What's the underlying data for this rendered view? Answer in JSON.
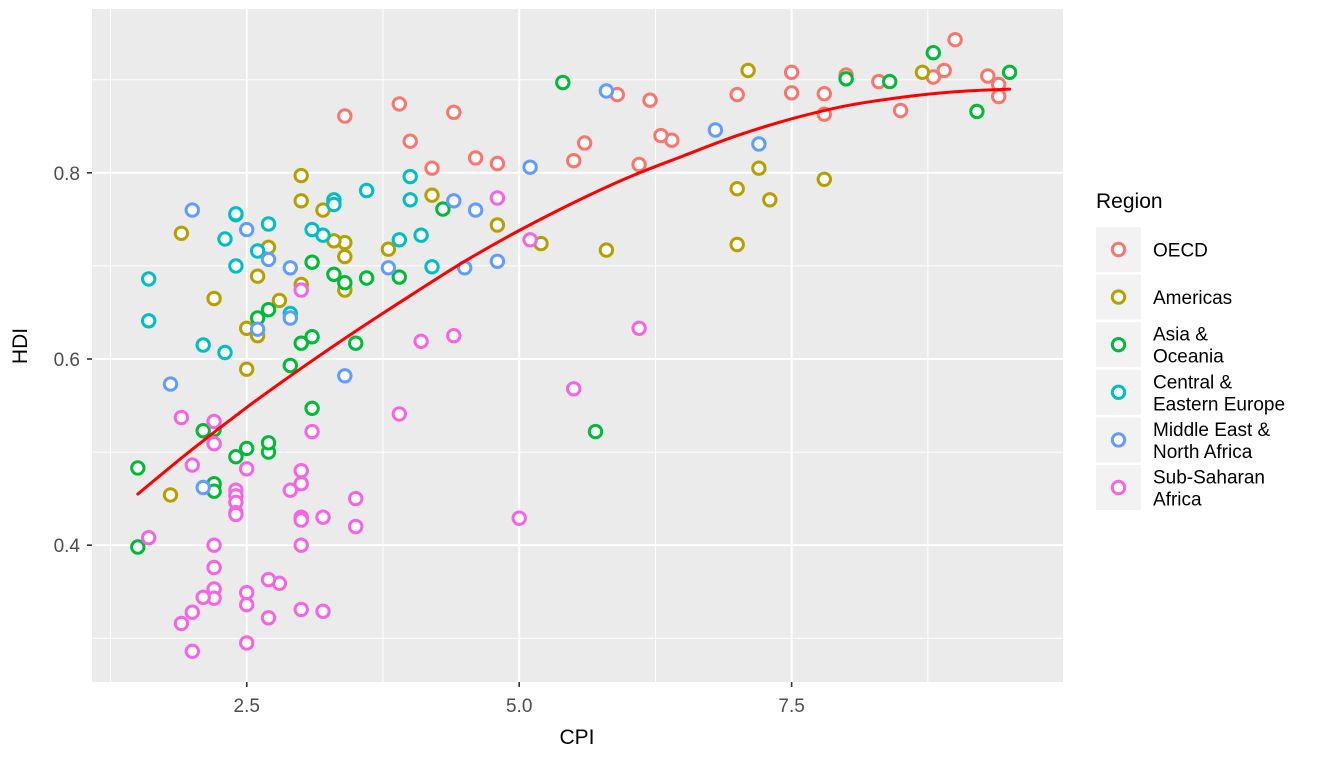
{
  "style": {
    "panel_background": "#EBEBEB",
    "grid_color": "#FFFFFF",
    "tick_mark_color": "#333333",
    "axis_text_color": "#4D4D4D",
    "legend_key_background": "#F2F2F2",
    "marker_fill": "#FFFFFF",
    "trend_color": "#FF0000"
  },
  "chart_data": {
    "type": "scatter",
    "title": "",
    "xlabel": "CPI",
    "ylabel": "HDI",
    "legend_title": "Region",
    "legend_position": "right",
    "grid": true,
    "xlim": [
      1.08,
      9.99
    ],
    "ylim": [
      0.253,
      0.976
    ],
    "x_major_ticks": [
      2.5,
      5.0,
      7.5
    ],
    "x_tick_labels": [
      "2.5",
      "5.0",
      "7.5"
    ],
    "x_minor_ticks": [
      1.25,
      3.75,
      6.25,
      8.75
    ],
    "y_major_ticks": [
      0.4,
      0.6,
      0.8
    ],
    "y_tick_labels": [
      "0.4",
      "0.6",
      "0.8"
    ],
    "y_minor_ticks": [
      0.3,
      0.5,
      0.7,
      0.9
    ],
    "marker": {
      "shape": "open-circle",
      "radius": 6.2,
      "stroke_width": 3
    },
    "series": [
      {
        "name": "OECD",
        "label_lines": [
          "OECD"
        ],
        "color": "#F8766D",
        "points": [
          [
            9.4,
            0.895
          ],
          [
            9.4,
            0.882
          ],
          [
            9.3,
            0.904
          ],
          [
            9.0,
            0.943
          ],
          [
            8.9,
            0.91
          ],
          [
            8.8,
            0.903
          ],
          [
            8.5,
            0.867
          ],
          [
            8.3,
            0.898
          ],
          [
            8.0,
            0.905
          ],
          [
            7.8,
            0.885
          ],
          [
            7.8,
            0.863
          ],
          [
            7.5,
            0.908
          ],
          [
            7.5,
            0.886
          ],
          [
            7.0,
            0.884
          ],
          [
            6.4,
            0.835
          ],
          [
            6.3,
            0.84
          ],
          [
            6.2,
            0.878
          ],
          [
            6.1,
            0.809
          ],
          [
            5.9,
            0.884
          ],
          [
            5.6,
            0.832
          ],
          [
            5.5,
            0.813
          ],
          [
            4.8,
            0.81
          ],
          [
            4.6,
            0.816
          ],
          [
            4.4,
            0.865
          ],
          [
            4.2,
            0.805
          ],
          [
            4.0,
            0.834
          ],
          [
            3.9,
            0.874
          ],
          [
            3.4,
            0.861
          ]
        ]
      },
      {
        "name": "Americas",
        "label_lines": [
          "Americas"
        ],
        "color": "#B79F00",
        "points": [
          [
            8.7,
            0.908
          ],
          [
            7.8,
            0.793
          ],
          [
            7.3,
            0.771
          ],
          [
            7.2,
            0.805
          ],
          [
            7.1,
            0.91
          ],
          [
            7.0,
            0.783
          ],
          [
            7.0,
            0.723
          ],
          [
            5.8,
            0.717
          ],
          [
            5.2,
            0.724
          ],
          [
            4.8,
            0.744
          ],
          [
            4.2,
            0.776
          ],
          [
            3.8,
            0.718
          ],
          [
            3.4,
            0.71
          ],
          [
            3.4,
            0.725
          ],
          [
            3.4,
            0.674
          ],
          [
            3.3,
            0.727
          ],
          [
            3.3,
            0.768
          ],
          [
            3.2,
            0.76
          ],
          [
            3.0,
            0.797
          ],
          [
            3.0,
            0.77
          ],
          [
            3.0,
            0.68
          ],
          [
            2.8,
            0.663
          ],
          [
            2.7,
            0.72
          ],
          [
            2.6,
            0.689
          ],
          [
            2.6,
            0.625
          ],
          [
            2.5,
            0.633
          ],
          [
            2.5,
            0.589
          ],
          [
            2.2,
            0.665
          ],
          [
            1.9,
            0.735
          ],
          [
            1.8,
            0.454
          ]
        ]
      },
      {
        "name": "Asia & Oceania",
        "label_lines": [
          "Asia &",
          "Oceania"
        ],
        "color": "#00BA38",
        "points": [
          [
            9.5,
            0.908
          ],
          [
            9.2,
            0.866
          ],
          [
            8.8,
            0.929
          ],
          [
            8.4,
            0.898
          ],
          [
            8.0,
            0.901
          ],
          [
            5.7,
            0.522
          ],
          [
            5.4,
            0.897
          ],
          [
            4.3,
            0.761
          ],
          [
            3.9,
            0.688
          ],
          [
            3.6,
            0.687
          ],
          [
            3.5,
            0.617
          ],
          [
            3.4,
            0.682
          ],
          [
            3.3,
            0.691
          ],
          [
            3.1,
            0.547
          ],
          [
            3.1,
            0.704
          ],
          [
            3.1,
            0.624
          ],
          [
            3.0,
            0.617
          ],
          [
            2.9,
            0.593
          ],
          [
            2.7,
            0.653
          ],
          [
            2.7,
            0.5
          ],
          [
            2.7,
            0.51
          ],
          [
            2.6,
            0.644
          ],
          [
            2.5,
            0.504
          ],
          [
            2.4,
            0.495
          ],
          [
            2.2,
            0.524
          ],
          [
            2.2,
            0.466
          ],
          [
            2.2,
            0.458
          ],
          [
            2.1,
            0.523
          ],
          [
            1.5,
            0.483
          ],
          [
            1.5,
            0.398
          ]
        ]
      },
      {
        "name": "Central & Eastern Europe",
        "label_lines": [
          "Central &",
          "Eastern Europe"
        ],
        "color": "#00BFC4",
        "points": [
          [
            4.2,
            0.699
          ],
          [
            4.1,
            0.733
          ],
          [
            4.0,
            0.796
          ],
          [
            4.0,
            0.771
          ],
          [
            3.9,
            0.728
          ],
          [
            3.6,
            0.781
          ],
          [
            3.3,
            0.771
          ],
          [
            3.3,
            0.766
          ],
          [
            3.2,
            0.733
          ],
          [
            3.1,
            0.739
          ],
          [
            2.9,
            0.649
          ],
          [
            2.7,
            0.745
          ],
          [
            2.6,
            0.716
          ],
          [
            2.4,
            0.755
          ],
          [
            2.4,
            0.756
          ],
          [
            2.4,
            0.7
          ],
          [
            2.3,
            0.729
          ],
          [
            2.3,
            0.607
          ],
          [
            2.1,
            0.615
          ],
          [
            1.6,
            0.641
          ],
          [
            1.6,
            0.686
          ]
        ]
      },
      {
        "name": "Middle East & North Africa",
        "label_lines": [
          "Middle East &",
          "North Africa"
        ],
        "color": "#619CFF",
        "points": [
          [
            7.2,
            0.831
          ],
          [
            6.8,
            0.846
          ],
          [
            5.8,
            0.888
          ],
          [
            5.1,
            0.806
          ],
          [
            4.8,
            0.705
          ],
          [
            4.6,
            0.76
          ],
          [
            4.5,
            0.698
          ],
          [
            4.4,
            0.77
          ],
          [
            3.8,
            0.698
          ],
          [
            3.4,
            0.582
          ],
          [
            2.9,
            0.698
          ],
          [
            2.9,
            0.644
          ],
          [
            2.7,
            0.707
          ],
          [
            2.6,
            0.632
          ],
          [
            2.5,
            0.739
          ],
          [
            2.1,
            0.462
          ],
          [
            2.0,
            0.76
          ],
          [
            1.8,
            0.573
          ]
        ]
      },
      {
        "name": "Sub-Saharan Africa",
        "label_lines": [
          "Sub-Saharan",
          "Africa"
        ],
        "color": "#F564E3",
        "points": [
          [
            6.1,
            0.633
          ],
          [
            5.5,
            0.568
          ],
          [
            5.1,
            0.728
          ],
          [
            5.0,
            0.429
          ],
          [
            4.8,
            0.773
          ],
          [
            4.4,
            0.625
          ],
          [
            4.1,
            0.619
          ],
          [
            3.9,
            0.541
          ],
          [
            3.5,
            0.45
          ],
          [
            3.5,
            0.42
          ],
          [
            3.2,
            0.43
          ],
          [
            3.2,
            0.329
          ],
          [
            3.1,
            0.522
          ],
          [
            3.0,
            0.48
          ],
          [
            3.0,
            0.674
          ],
          [
            3.0,
            0.466
          ],
          [
            3.0,
            0.43
          ],
          [
            3.0,
            0.427
          ],
          [
            3.0,
            0.4
          ],
          [
            3.0,
            0.331
          ],
          [
            2.9,
            0.459
          ],
          [
            2.8,
            0.359
          ],
          [
            2.7,
            0.363
          ],
          [
            2.7,
            0.322
          ],
          [
            2.5,
            0.482
          ],
          [
            2.5,
            0.349
          ],
          [
            2.5,
            0.336
          ],
          [
            2.5,
            0.295
          ],
          [
            2.4,
            0.459
          ],
          [
            2.4,
            0.453
          ],
          [
            2.4,
            0.446
          ],
          [
            2.4,
            0.435
          ],
          [
            2.4,
            0.433
          ],
          [
            2.2,
            0.533
          ],
          [
            2.2,
            0.509
          ],
          [
            2.2,
            0.4
          ],
          [
            2.2,
            0.376
          ],
          [
            2.2,
            0.353
          ],
          [
            2.2,
            0.343
          ],
          [
            2.1,
            0.344
          ],
          [
            2.0,
            0.486
          ],
          [
            2.0,
            0.328
          ],
          [
            2.0,
            0.286
          ],
          [
            1.9,
            0.537
          ],
          [
            1.9,
            0.316
          ],
          [
            1.6,
            0.408
          ]
        ]
      }
    ],
    "trend_line": {
      "color": "#FF0000",
      "stroke_width": 3,
      "points": [
        [
          1.5,
          0.455
        ],
        [
          2.0,
          0.503
        ],
        [
          2.5,
          0.548
        ],
        [
          3.0,
          0.59
        ],
        [
          3.5,
          0.63
        ],
        [
          4.0,
          0.668
        ],
        [
          4.5,
          0.705
        ],
        [
          5.0,
          0.738
        ],
        [
          5.5,
          0.768
        ],
        [
          6.0,
          0.795
        ],
        [
          6.5,
          0.818
        ],
        [
          7.0,
          0.84
        ],
        [
          7.5,
          0.858
        ],
        [
          8.0,
          0.872
        ],
        [
          8.5,
          0.881
        ],
        [
          9.0,
          0.887
        ],
        [
          9.5,
          0.89
        ]
      ]
    }
  }
}
